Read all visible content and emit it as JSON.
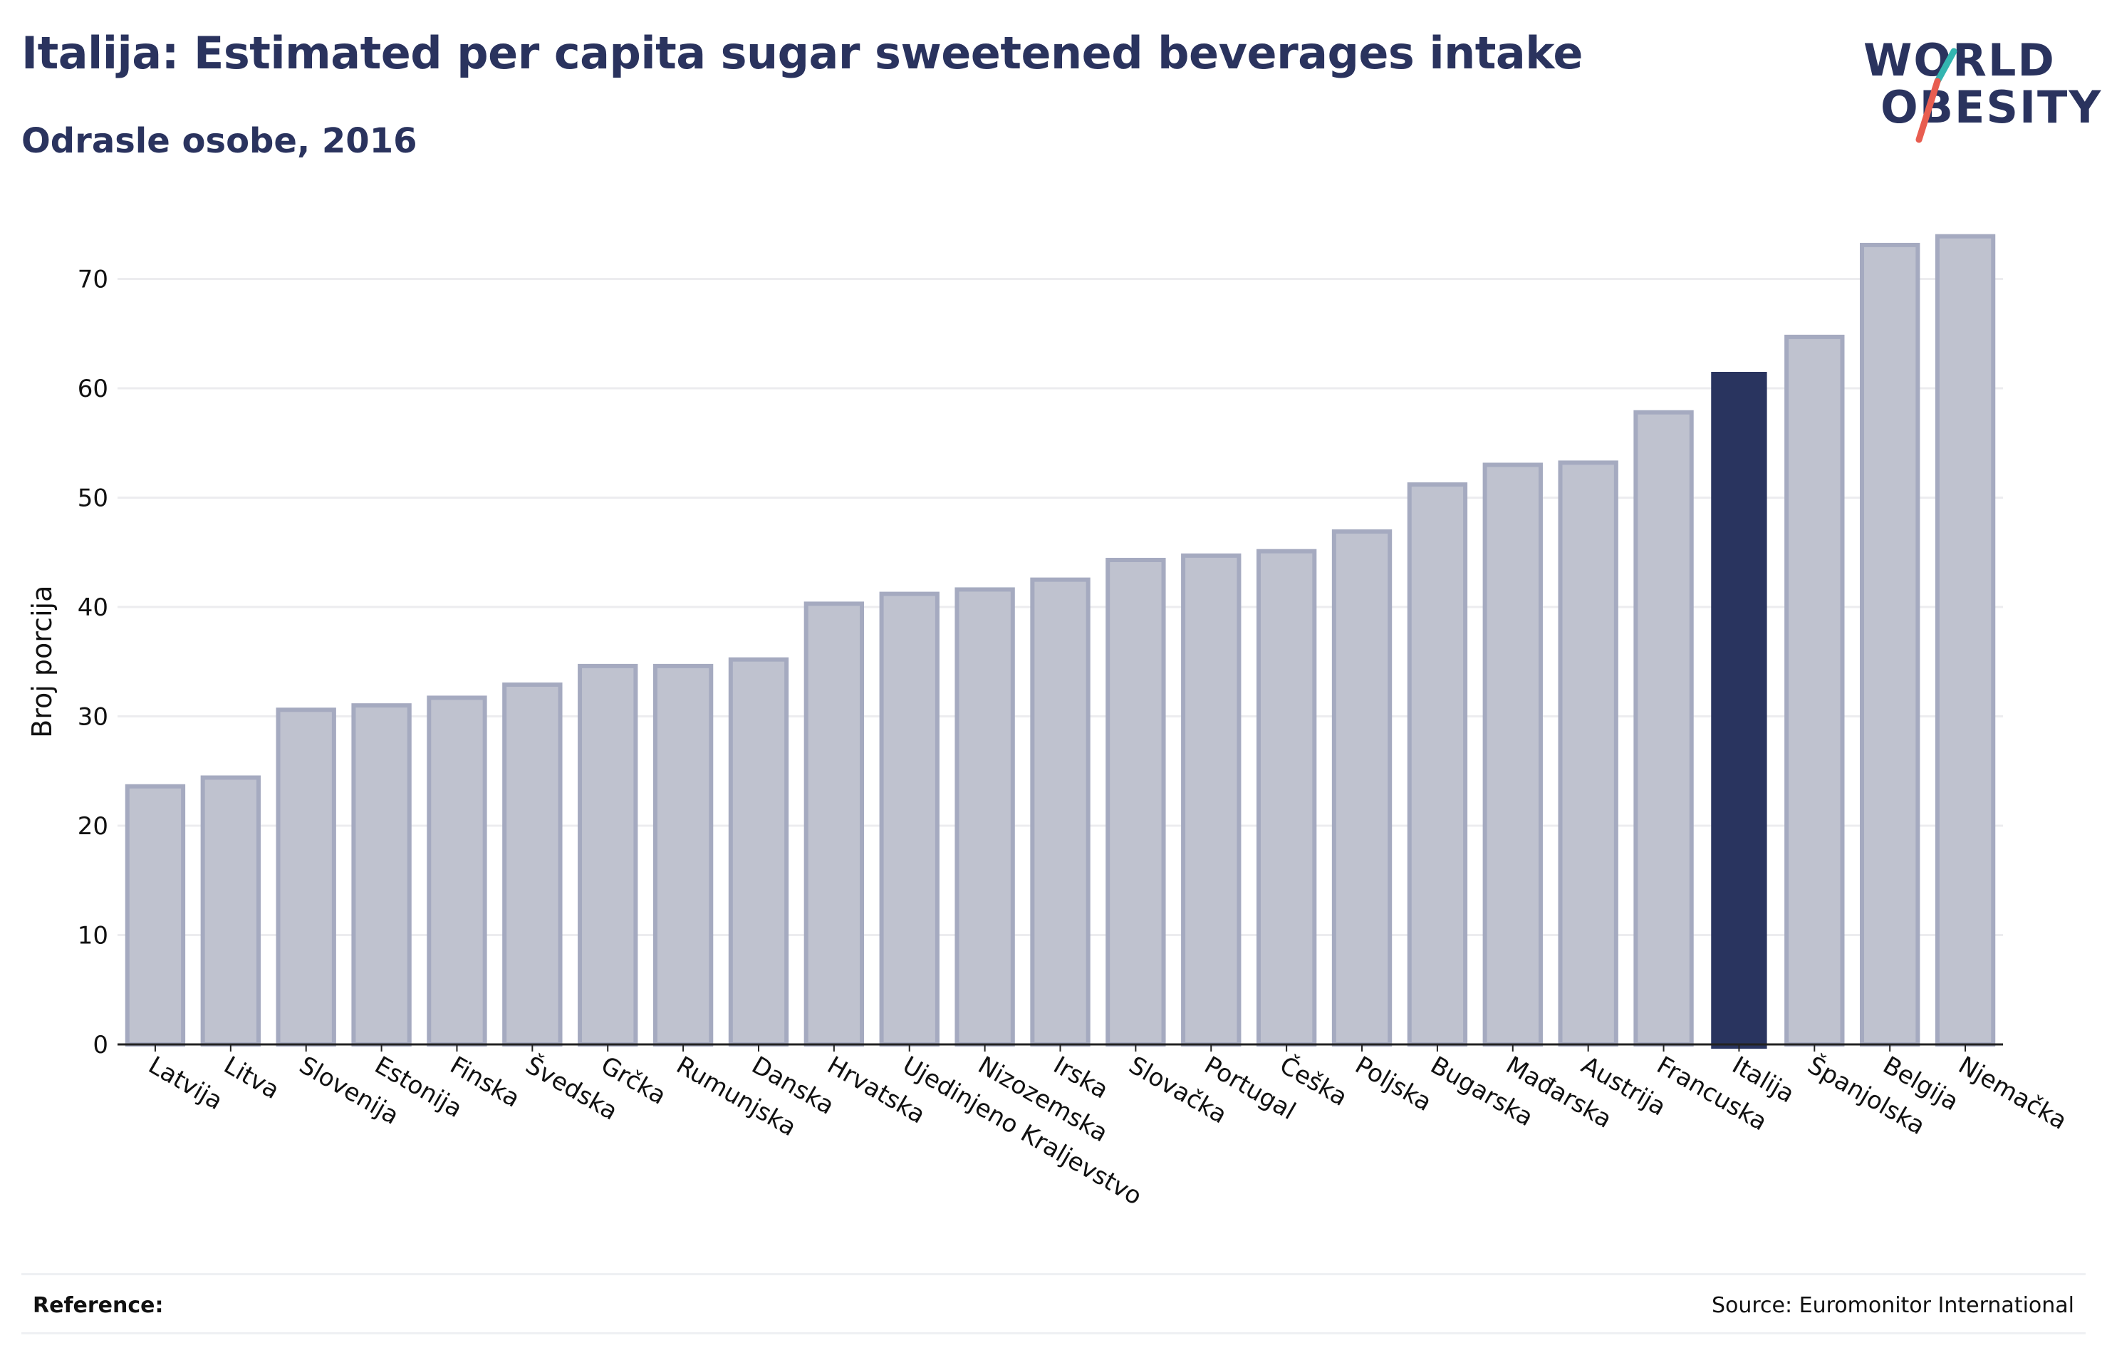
{
  "header": {
    "title": "Italija: Estimated per capita sugar sweetened beverages intake",
    "subtitle": "Odrasle osobe, 2016"
  },
  "logo": {
    "line1": "WORLD",
    "line2": "OBESITY",
    "slash_colors": [
      "#33b5b0",
      "#e85d50"
    ]
  },
  "footer": {
    "reference_label": "Reference:",
    "source": "Source: Euromonitor International"
  },
  "colors": {
    "bar_fill": "#bfc2cf",
    "bar_stroke": "#a5aac0",
    "highlight": "#29345f",
    "grid": "#ececef",
    "axis": "#222222"
  },
  "chart_data": {
    "type": "bar",
    "title": "Italija: Estimated per capita sugar sweetened beverages intake",
    "subtitle": "Odrasle osobe, 2016",
    "xlabel": "",
    "ylabel": "Broj porcija",
    "ylim": [
      0,
      75
    ],
    "yticks": [
      0,
      10,
      20,
      30,
      40,
      50,
      60,
      70
    ],
    "grid": true,
    "highlight": "Italija",
    "categories": [
      "Latvija",
      "Litva",
      "Slovenija",
      "Estonija",
      "Finska",
      "Švedska",
      "Grčka",
      "Rumunjska",
      "Danska",
      "Hrvatska",
      "Ujedinjeno Kraljevstvo",
      "Nizozemska",
      "Irska",
      "Slovačka",
      "Portugal",
      "Češka",
      "Poljska",
      "Bugarska",
      "Mađarska",
      "Austrija",
      "Francuska",
      "Italija",
      "Španjolska",
      "Belgija",
      "Njemačka"
    ],
    "values": [
      23.6,
      24.4,
      30.6,
      31.0,
      31.7,
      32.9,
      34.6,
      34.6,
      35.2,
      40.3,
      41.2,
      41.6,
      42.5,
      44.3,
      44.7,
      45.1,
      46.9,
      51.2,
      53.0,
      53.2,
      57.8,
      61.5,
      64.7,
      73.1,
      73.9
    ]
  }
}
